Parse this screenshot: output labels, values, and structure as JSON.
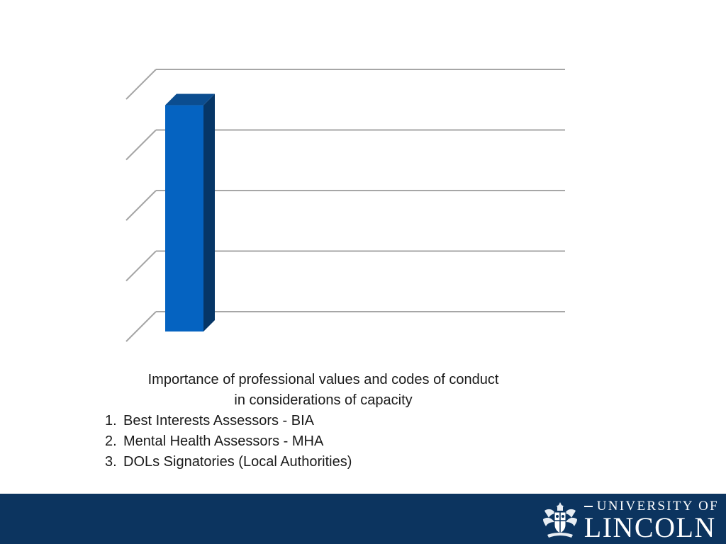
{
  "chart_data": {
    "type": "bar",
    "categories": [
      ""
    ],
    "values": [
      3.9
    ],
    "ylim": [
      0,
      4
    ],
    "grid": true,
    "three_d": true,
    "colors": {
      "bar_front": "#0563c1",
      "bar_side": "#063667",
      "bar_top": "#0b4d90",
      "grid": "#a6a6a6"
    }
  },
  "caption": {
    "title": "Importance of professional values and codes of conduct in considerations of capacity",
    "title_line1": "Importance of professional values and codes of conduct",
    "title_line2": "in considerations of capacity",
    "items": [
      {
        "num": "1.",
        "text": "Best Interests Assessors - BIA"
      },
      {
        "num": "2.",
        "text": "Mental Health Assessors - MHA"
      },
      {
        "num": "3.",
        "text": "DOLs Signatories (Local Authorities)"
      }
    ]
  },
  "footer": {
    "background": "#0c345f",
    "logo_top": "UNIVERSITY OF",
    "logo_bottom": "LINCOLN",
    "crest_icon": "university-crest-icon"
  }
}
